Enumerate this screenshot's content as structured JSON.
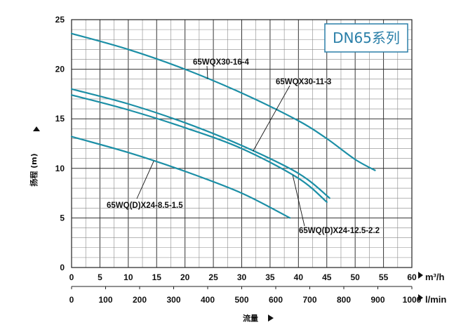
{
  "chart_data": {
    "type": "line",
    "title_badge": "DN65系列",
    "xlabel": "流量",
    "ylabel": "扬程 (m)",
    "x_unit_primary": "m³/h",
    "x_unit_secondary": "l/min",
    "xlim": [
      0,
      60
    ],
    "ylim": [
      0,
      25
    ],
    "x_ticks": [
      "0",
      "5",
      "10",
      "15",
      "20",
      "25",
      "30",
      "35",
      "40",
      "45",
      "50",
      "55",
      "60"
    ],
    "x_ticks_secondary": [
      "0",
      "100",
      "200",
      "300",
      "400",
      "500",
      "600",
      "700",
      "800",
      "900",
      "1000"
    ],
    "y_ticks": [
      "0",
      "5",
      "10",
      "15",
      "20",
      "25"
    ],
    "grid": true,
    "curve_color": "#1c8fa6",
    "series": [
      {
        "name": "65WQX30-16-4",
        "x": [
          0,
          10,
          20,
          30,
          40,
          45,
          50,
          53.5
        ],
        "y": [
          23.6,
          22.0,
          20.0,
          17.6,
          14.8,
          13.0,
          10.9,
          9.8
        ]
      },
      {
        "name": "65WQX30-11-3",
        "x": [
          0,
          10,
          20,
          30,
          40,
          45.5
        ],
        "y": [
          18.0,
          16.5,
          14.6,
          12.3,
          9.5,
          7.0
        ]
      },
      {
        "name": "65WQ(D)X24-12.5-2.2",
        "x": [
          0,
          10,
          20,
          30,
          40,
          45
        ],
        "y": [
          17.4,
          15.9,
          14.1,
          12.0,
          9.0,
          6.6
        ]
      },
      {
        "name": "65WQ(D)X24-8.5-1.5",
        "x": [
          0,
          10,
          20,
          30,
          38.5
        ],
        "y": [
          13.2,
          11.6,
          9.7,
          7.5,
          5.0
        ]
      }
    ]
  }
}
